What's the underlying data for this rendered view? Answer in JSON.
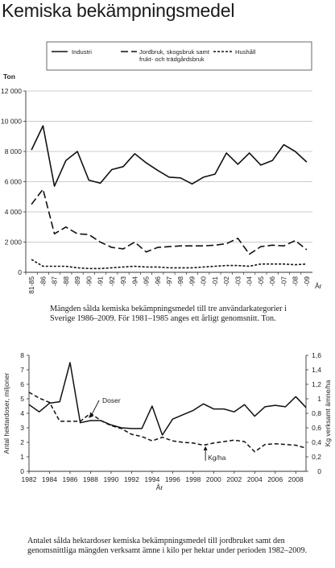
{
  "page": {
    "title": "Kemiska bekämpningsmedel"
  },
  "chart_data": [
    {
      "type": "line",
      "unit_label": "Ton",
      "xlabel": "År",
      "categories": [
        "81-85",
        "-86",
        "-87",
        "-88",
        "-89",
        "-90",
        "-91",
        "-92",
        "-93",
        "-94",
        "-95",
        "-96",
        "-97",
        "-98",
        "-99",
        "-00",
        "-01",
        "-02",
        "-03",
        "-04",
        "-05",
        "-06",
        "-07",
        "-08",
        "-09"
      ],
      "ylim": [
        0,
        12000
      ],
      "yticks": [
        "0",
        "2 000",
        "4 000",
        "6 000",
        "8 000",
        "10 000",
        "12 000"
      ],
      "ytick_values": [
        0,
        2000,
        4000,
        6000,
        8000,
        10000,
        12000
      ],
      "legend_position": "top",
      "series": [
        {
          "name": "Industri",
          "style": "solid",
          "values": [
            8100,
            9700,
            5700,
            7400,
            8000,
            6100,
            5900,
            6800,
            7000,
            7850,
            7250,
            6750,
            6300,
            6250,
            5850,
            6300,
            6500,
            7900,
            7150,
            7900,
            7100,
            7400,
            8450,
            8000,
            7300
          ]
        },
        {
          "name": "Jordbruk, skogsbruk samt frukt- och trädgårdsbruk",
          "style": "long-dash",
          "values": [
            4500,
            5500,
            2550,
            3000,
            2550,
            2500,
            2000,
            1650,
            1550,
            2000,
            1350,
            1650,
            1700,
            1750,
            1750,
            1750,
            1800,
            1900,
            2250,
            1200,
            1700,
            1800,
            1750,
            2100,
            1500
          ]
        },
        {
          "name": "Hushåll",
          "style": "short-dash",
          "values": [
            850,
            400,
            400,
            400,
            300,
            250,
            250,
            300,
            350,
            400,
            350,
            350,
            300,
            300,
            300,
            350,
            400,
            450,
            450,
            400,
            550,
            550,
            550,
            500,
            550
          ]
        }
      ],
      "caption": "Mängden sålda kemiska bekämpningsmedel till tre användarkategorier i Sverige 1986–2009. För 1981–1985 anges ett årligt genomsnitt. Ton."
    },
    {
      "type": "line",
      "xlabel": "År",
      "ylabel_left": "Antal hektardoser, miljoner",
      "ylabel_right": "Kg verksamt ämne/ha",
      "x": [
        1982,
        1983,
        1984,
        1985,
        1986,
        1987,
        1988,
        1989,
        1990,
        1991,
        1992,
        1993,
        1994,
        1995,
        1996,
        1997,
        1998,
        1999,
        2000,
        2001,
        2002,
        2003,
        2004,
        2005,
        2006,
        2007,
        2008,
        2009
      ],
      "xticks": [
        "1982",
        "1984",
        "1986",
        "1988",
        "1990",
        "1992",
        "1994",
        "1996",
        "1998",
        "2000",
        "2002",
        "2004",
        "2006",
        "2008"
      ],
      "xtick_values": [
        1982,
        1984,
        1986,
        1988,
        1990,
        1992,
        1994,
        1996,
        1998,
        2000,
        2002,
        2004,
        2006,
        2008
      ],
      "ylim_left": [
        0,
        8
      ],
      "yticks_left": [
        "0",
        "1",
        "2",
        "3",
        "4",
        "5",
        "6",
        "7",
        "8"
      ],
      "ylim_right": [
        0,
        1.6
      ],
      "yticks_right": [
        "0",
        "0,2",
        "0,4",
        "0,6",
        "0,8",
        "1",
        "1,2",
        "1,4",
        "1,6"
      ],
      "series": [
        {
          "name": "Doser",
          "axis": "left",
          "style": "solid",
          "values": [
            4.6,
            4.1,
            4.7,
            4.8,
            7.5,
            3.35,
            3.5,
            3.5,
            3.2,
            3.0,
            2.95,
            2.95,
            4.5,
            2.5,
            3.6,
            3.9,
            4.2,
            4.65,
            4.3,
            4.3,
            4.1,
            4.6,
            3.8,
            4.45,
            4.55,
            4.45,
            5.15,
            4.4
          ]
        },
        {
          "name": "Kg/ha",
          "axis": "right",
          "style": "dashed",
          "values": [
            1.09,
            1.01,
            0.95,
            0.69,
            0.69,
            0.69,
            0.8,
            0.7,
            0.63,
            0.59,
            0.51,
            0.48,
            0.42,
            0.47,
            0.42,
            0.4,
            0.39,
            0.36,
            0.39,
            0.41,
            0.43,
            0.41,
            0.27,
            0.37,
            0.38,
            0.37,
            0.36,
            0.32
          ]
        }
      ],
      "caption": "Antalet sålda hektardoser kemiska bekämpningsmedel till jordbruket samt den genomsnittliga mängden verksamt ämne i kilo per hektar under perioden 1982–2009."
    }
  ]
}
